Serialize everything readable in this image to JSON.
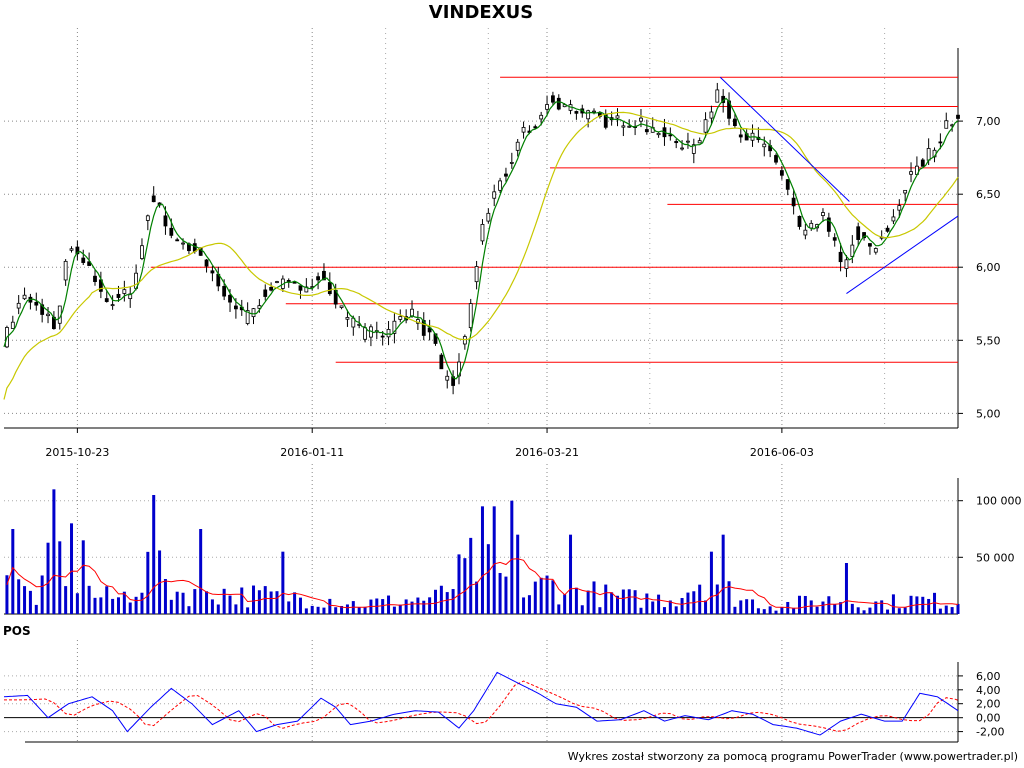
{
  "chart_data": [
    {
      "type": "candlestick",
      "title": "VINDEXUS",
      "x_tick_labels": [
        "2015-10-23",
        "2016-01-11",
        "2016-03-21",
        "2016-06-03"
      ],
      "x_tick_index": [
        25,
        105,
        185,
        265
      ],
      "x_range": [
        0,
        325
      ],
      "ylim": [
        4.9,
        7.5
      ],
      "y_ticks": [
        5.0,
        5.5,
        6.0,
        6.5,
        7.0
      ],
      "y_tick_labels": [
        "5,00",
        "5,50",
        "6,00",
        "6,50",
        "7,00"
      ],
      "grid": true,
      "close_anchors": [
        [
          0,
          5.5
        ],
        [
          6,
          5.8
        ],
        [
          13,
          5.7
        ],
        [
          18,
          5.6
        ],
        [
          22,
          6.15
        ],
        [
          30,
          5.95
        ],
        [
          36,
          5.75
        ],
        [
          44,
          5.85
        ],
        [
          50,
          6.5
        ],
        [
          58,
          6.2
        ],
        [
          66,
          6.1
        ],
        [
          74,
          5.85
        ],
        [
          82,
          5.65
        ],
        [
          92,
          5.9
        ],
        [
          100,
          5.85
        ],
        [
          108,
          5.95
        ],
        [
          115,
          5.7
        ],
        [
          122,
          5.55
        ],
        [
          130,
          5.55
        ],
        [
          138,
          5.7
        ],
        [
          146,
          5.5
        ],
        [
          150,
          5.25
        ],
        [
          153,
          5.2
        ],
        [
          158,
          5.6
        ],
        [
          163,
          6.3
        ],
        [
          170,
          6.6
        ],
        [
          176,
          6.9
        ],
        [
          182,
          7.0
        ],
        [
          186,
          7.15
        ],
        [
          192,
          7.1
        ],
        [
          205,
          7.0
        ],
        [
          215,
          7.0
        ],
        [
          225,
          6.9
        ],
        [
          235,
          6.8
        ],
        [
          243,
          7.2
        ],
        [
          250,
          6.95
        ],
        [
          257,
          6.85
        ],
        [
          262,
          6.75
        ],
        [
          266,
          6.6
        ],
        [
          272,
          6.2
        ],
        [
          280,
          6.35
        ],
        [
          286,
          5.95
        ],
        [
          290,
          6.25
        ],
        [
          296,
          6.1
        ],
        [
          302,
          6.3
        ],
        [
          308,
          6.6
        ],
        [
          316,
          6.8
        ],
        [
          322,
          7.0
        ]
      ],
      "horizontal_lines": [
        7.3,
        7.1,
        6.68,
        6.43,
        6.0,
        5.75,
        5.35
      ],
      "horizontal_line_start_index": [
        169,
        203,
        186,
        226,
        50,
        96,
        113
      ],
      "trendlines": [
        {
          "from": [
            244,
            7.3
          ],
          "to": [
            288,
            6.45
          ]
        },
        {
          "from": [
            287,
            5.82
          ],
          "to": [
            325,
            6.35
          ]
        }
      ],
      "moving_averages": [
        {
          "periods": 5,
          "color": "#008000"
        },
        {
          "periods": 30,
          "color": "#c8c800"
        }
      ],
      "colors": {
        "horizontal_lines": "#ff0000",
        "trendlines": "#0000ff",
        "candles": "#000000"
      }
    },
    {
      "type": "bar",
      "ylim": [
        0,
        120000
      ],
      "y_ticks": [
        50000,
        100000
      ],
      "y_tick_labels": [
        "50 000",
        "100 000"
      ],
      "level_anchors": [
        [
          0,
          60000
        ],
        [
          5,
          25000
        ],
        [
          12,
          15000
        ],
        [
          17,
          60000
        ],
        [
          23,
          45000
        ],
        [
          30,
          18000
        ],
        [
          40,
          15000
        ],
        [
          50,
          45000
        ],
        [
          60,
          20000
        ],
        [
          68,
          25000
        ],
        [
          80,
          18000
        ],
        [
          95,
          18000
        ],
        [
          110,
          15000
        ],
        [
          120,
          10000
        ],
        [
          135,
          13000
        ],
        [
          148,
          16000
        ],
        [
          160,
          50000
        ],
        [
          168,
          40000
        ],
        [
          176,
          15000
        ],
        [
          185,
          30000
        ],
        [
          193,
          25000
        ],
        [
          205,
          18000
        ],
        [
          215,
          15000
        ],
        [
          228,
          15000
        ],
        [
          240,
          40000
        ],
        [
          250,
          15000
        ],
        [
          262,
          8000
        ],
        [
          280,
          14000
        ],
        [
          295,
          10000
        ],
        [
          310,
          14000
        ],
        [
          325,
          12000
        ]
      ],
      "spikes": [
        [
          3,
          75000
        ],
        [
          17,
          110000
        ],
        [
          22,
          80000
        ],
        [
          27,
          65000
        ],
        [
          50,
          105000
        ],
        [
          67,
          75000
        ],
        [
          94,
          55000
        ],
        [
          162,
          95000
        ],
        [
          167,
          95000
        ],
        [
          172,
          100000
        ],
        [
          175,
          70000
        ],
        [
          192,
          70000
        ],
        [
          241,
          55000
        ],
        [
          244,
          70000
        ],
        [
          287,
          45000
        ]
      ],
      "average_line_color": "#ff0000",
      "bar_color": "#0000cc"
    },
    {
      "type": "line",
      "name": "POS",
      "ylim": [
        -3.5,
        8.0
      ],
      "y_ticks": [
        -2.0,
        0.0,
        2.0,
        4.0,
        6.0
      ],
      "y_tick_labels": [
        "-2,00",
        "0,00",
        "2,00",
        "4,00",
        "6,00"
      ],
      "zero_line": true,
      "pos_anchors": [
        [
          0,
          3.0
        ],
        [
          8,
          3.2
        ],
        [
          15,
          0.0
        ],
        [
          22,
          2.0
        ],
        [
          30,
          3.0
        ],
        [
          37,
          1.0
        ],
        [
          42,
          -2.0
        ],
        [
          50,
          1.5
        ],
        [
          57,
          4.2
        ],
        [
          64,
          2.0
        ],
        [
          71,
          -1.0
        ],
        [
          80,
          1.0
        ],
        [
          86,
          -2.0
        ],
        [
          93,
          -1.0
        ],
        [
          100,
          -0.5
        ],
        [
          108,
          2.8
        ],
        [
          113,
          1.5
        ],
        [
          118,
          -1.0
        ],
        [
          125,
          -0.5
        ],
        [
          133,
          0.5
        ],
        [
          140,
          1.0
        ],
        [
          148,
          0.8
        ],
        [
          155,
          -1.5
        ],
        [
          160,
          1.0
        ],
        [
          168,
          6.5
        ],
        [
          175,
          5.0
        ],
        [
          182,
          3.5
        ],
        [
          188,
          2.0
        ],
        [
          195,
          1.5
        ],
        [
          202,
          -0.5
        ],
        [
          210,
          -0.3
        ],
        [
          218,
          1.0
        ],
        [
          225,
          -0.5
        ],
        [
          232,
          0.3
        ],
        [
          240,
          -0.3
        ],
        [
          248,
          1.0
        ],
        [
          255,
          0.5
        ],
        [
          262,
          -1.0
        ],
        [
          270,
          -1.5
        ],
        [
          278,
          -2.5
        ],
        [
          285,
          -0.5
        ],
        [
          292,
          0.5
        ],
        [
          300,
          -0.5
        ],
        [
          306,
          -0.5
        ],
        [
          312,
          3.5
        ],
        [
          318,
          3.0
        ],
        [
          325,
          1.0
        ]
      ],
      "signal_lag": 6,
      "colors": {
        "pos": "#0000ff",
        "signal": "#ff0000",
        "zero": "#000000"
      }
    }
  ],
  "pos_label": "POS",
  "footer": "Wykres został stworzony za pomocą programu PowerTrader (www.powertrader.pl)"
}
